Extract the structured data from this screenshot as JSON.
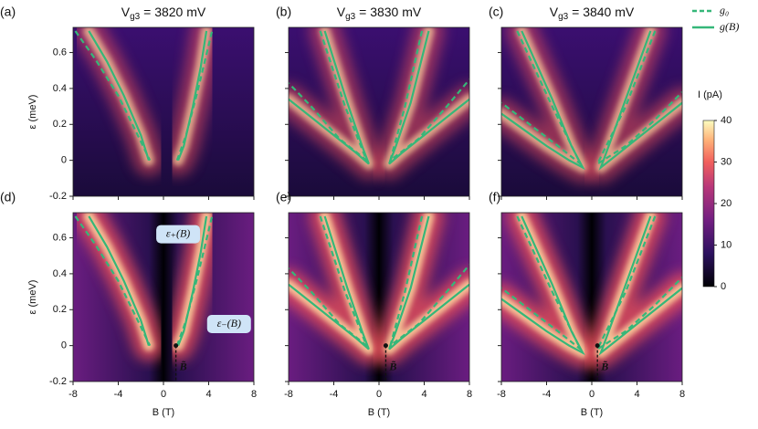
{
  "chart_data": [
    {
      "type": "heatmap",
      "panel": "(a)",
      "title": {
        "main": "V",
        "sub": "g3",
        "rest": " = 3820 mV"
      },
      "ylabel": "ε (meV)",
      "xlim": [
        -8,
        8
      ],
      "xticks": [
        -8,
        -4,
        0,
        4,
        8
      ],
      "ylim": [
        -0.2,
        0.74
      ],
      "yticks": [
        -0.2,
        0,
        0.2,
        0.4,
        0.6
      ],
      "series": [
        {
          "name": "g₀",
          "color": "#35b779",
          "dashed": true,
          "x": [
            -7.8,
            -6,
            -4,
            -2.2,
            -1.2,
            null,
            1.2,
            2,
            3,
            4.3
          ],
          "values": [
            0.72,
            0.56,
            0.36,
            0.13,
            0,
            null,
            0,
            0.14,
            0.38,
            0.72
          ]
        },
        {
          "name": "g(B)",
          "color": "#35b779",
          "dashed": false,
          "x": [
            -6.6,
            -5,
            -3.5,
            -2,
            -1.3,
            null,
            1.3,
            1.8,
            2.6,
            3.3,
            3.8
          ],
          "values": [
            0.72,
            0.55,
            0.36,
            0.14,
            0,
            null,
            0,
            0.08,
            0.3,
            0.52,
            0.72
          ]
        }
      ]
    },
    {
      "type": "heatmap",
      "panel": "(b)",
      "title": {
        "main": "V",
        "sub": "g3",
        "rest": " = 3830 mV"
      },
      "xlim": [
        -8,
        8
      ],
      "xticks": [
        -8,
        -4,
        0,
        4,
        8
      ],
      "ylim": [
        -0.2,
        0.74
      ],
      "yticks": [
        -0.2,
        0,
        0.2,
        0.4,
        0.6
      ],
      "series": [
        {
          "name": "g₀",
          "color": "#35b779",
          "dashed": true,
          "x": [
            -5.2,
            -3,
            -1.1,
            -3.5,
            -6,
            -8,
            null,
            3.8,
            2.3,
            1,
            3.5,
            6,
            8
          ],
          "values": [
            0.72,
            0.3,
            0,
            0.12,
            0.3,
            0.43,
            null,
            0.72,
            0.3,
            0,
            0.12,
            0.3,
            0.45
          ]
        },
        {
          "name": "g(B)",
          "color": "#35b779",
          "dashed": false,
          "x": [
            -4.8,
            -2.8,
            -1.5,
            -0.9,
            -2,
            -4,
            -6,
            -8,
            null,
            4.4,
            2.8,
            1.5,
            0.9,
            2,
            4,
            6,
            8
          ],
          "values": [
            0.72,
            0.32,
            0.08,
            -0.02,
            0.04,
            0.14,
            0.24,
            0.34,
            null,
            0.72,
            0.32,
            0.08,
            -0.02,
            0.04,
            0.14,
            0.24,
            0.34
          ]
        }
      ]
    },
    {
      "type": "heatmap",
      "panel": "(c)",
      "title": {
        "main": "V",
        "sub": "g3",
        "rest": " = 3840 mV"
      },
      "xlim": [
        -8,
        8
      ],
      "xticks": [
        -8,
        -4,
        0,
        4,
        8
      ],
      "ylim": [
        -0.2,
        0.74
      ],
      "yticks": [
        -0.2,
        0,
        0.2,
        0.4,
        0.6
      ],
      "series": [
        {
          "name": "g₀",
          "color": "#35b779",
          "dashed": true,
          "x": [
            -6.6,
            -3.5,
            -1,
            -3,
            -5.5,
            -8,
            null,
            5.6,
            3,
            0.5,
            3,
            5.5,
            8
          ],
          "values": [
            0.72,
            0.3,
            -0.02,
            0.08,
            0.2,
            0.32,
            null,
            0.72,
            0.3,
            -0.02,
            0.08,
            0.22,
            0.38
          ]
        },
        {
          "name": "g(B)",
          "color": "#35b779",
          "dashed": false,
          "x": [
            -6.2,
            -3.5,
            -1.8,
            -0.8,
            -2,
            -4,
            -6,
            -8,
            null,
            5.2,
            3,
            1.5,
            0.8,
            2,
            4,
            6,
            8
          ],
          "values": [
            0.72,
            0.34,
            0.08,
            -0.04,
            0,
            0.08,
            0.17,
            0.26,
            null,
            0.72,
            0.34,
            0.08,
            -0.04,
            0.02,
            0.12,
            0.22,
            0.32
          ]
        }
      ]
    },
    {
      "type": "heatmap",
      "panel": "(d)",
      "ylabel": "ε (meV)",
      "xlabel": "B (T)",
      "xlim": [
        -8,
        8
      ],
      "xticks": [
        -8,
        -4,
        0,
        4,
        8
      ],
      "ylim": [
        -0.2,
        0.74
      ],
      "yticks": [
        -0.2,
        0,
        0.2,
        0.4,
        0.6
      ],
      "annotations": [
        {
          "text": "ε₊(B)",
          "x": 1.3,
          "y": 0.62
        },
        {
          "text": "ε₋(B)",
          "x": 5.8,
          "y": 0.12
        }
      ],
      "btilde": {
        "label": "B̃",
        "x": 1.1,
        "y": 0
      },
      "series": [
        {
          "name": "g₀",
          "color": "#35b779",
          "dashed": true,
          "x": [
            -7.8,
            -6,
            -4,
            -2.2,
            -1.2,
            null,
            1.2,
            2,
            3,
            4.3
          ],
          "values": [
            0.72,
            0.56,
            0.36,
            0.13,
            0,
            null,
            0,
            0.14,
            0.38,
            0.72
          ]
        },
        {
          "name": "g(B)",
          "color": "#35b779",
          "dashed": false,
          "x": [
            -6.6,
            -5,
            -3.5,
            -2,
            -1.3,
            null,
            1.3,
            1.8,
            2.6,
            3.3,
            3.8
          ],
          "values": [
            0.72,
            0.55,
            0.36,
            0.14,
            0,
            null,
            0,
            0.08,
            0.3,
            0.52,
            0.72
          ]
        }
      ]
    },
    {
      "type": "heatmap",
      "panel": "(e)",
      "xlabel": "B (T)",
      "xlim": [
        -8,
        8
      ],
      "xticks": [
        -8,
        -4,
        0,
        4,
        8
      ],
      "ylim": [
        -0.2,
        0.74
      ],
      "yticks": [
        -0.2,
        0,
        0.2,
        0.4,
        0.6
      ],
      "btilde": {
        "label": "B̃",
        "x": 0.6,
        "y": 0
      },
      "series": [
        {
          "name": "g₀",
          "color": "#35b779",
          "dashed": true,
          "x": [
            -5.2,
            -3,
            -1.1,
            -3.5,
            -6,
            -8,
            null,
            3.8,
            2.3,
            1,
            3.5,
            6,
            8
          ],
          "values": [
            0.72,
            0.3,
            0,
            0.12,
            0.3,
            0.43,
            null,
            0.72,
            0.3,
            0,
            0.12,
            0.3,
            0.45
          ]
        },
        {
          "name": "g(B)",
          "color": "#35b779",
          "dashed": false,
          "x": [
            -4.8,
            -2.8,
            -1.5,
            -0.9,
            -2,
            -4,
            -6,
            -8,
            null,
            4.4,
            2.8,
            1.5,
            0.9,
            2,
            4,
            6,
            8
          ],
          "values": [
            0.72,
            0.32,
            0.08,
            -0.02,
            0.04,
            0.14,
            0.24,
            0.34,
            null,
            0.72,
            0.32,
            0.08,
            -0.02,
            0.04,
            0.14,
            0.24,
            0.34
          ]
        }
      ]
    },
    {
      "type": "heatmap",
      "panel": "(f)",
      "xlabel": "B (T)",
      "xlim": [
        -8,
        8
      ],
      "xticks": [
        -8,
        -4,
        0,
        4,
        8
      ],
      "ylim": [
        -0.2,
        0.74
      ],
      "yticks": [
        -0.2,
        0,
        0.2,
        0.4,
        0.6
      ],
      "btilde": {
        "label": "B̃",
        "x": 0.5,
        "y": 0
      },
      "series": [
        {
          "name": "g₀",
          "color": "#35b779",
          "dashed": true,
          "x": [
            -6.6,
            -3.5,
            -1,
            -3,
            -5.5,
            -8,
            null,
            5.6,
            3,
            0.5,
            3,
            5.5,
            8
          ],
          "values": [
            0.72,
            0.3,
            -0.02,
            0.08,
            0.2,
            0.32,
            null,
            0.72,
            0.3,
            -0.02,
            0.08,
            0.22,
            0.38
          ]
        },
        {
          "name": "g(B)",
          "color": "#35b779",
          "dashed": false,
          "x": [
            -6.2,
            -3.5,
            -1.8,
            -0.8,
            -2,
            -4,
            -6,
            -8,
            null,
            5.2,
            3,
            1.5,
            0.8,
            2,
            4,
            6,
            8
          ],
          "values": [
            0.72,
            0.34,
            0.08,
            -0.04,
            0,
            0.08,
            0.17,
            0.26,
            null,
            0.72,
            0.34,
            0.08,
            -0.04,
            0.02,
            0.12,
            0.22,
            0.32
          ]
        }
      ]
    },
    {
      "type": "colorbar",
      "label": "I (pA)",
      "ylim": [
        0,
        40
      ],
      "yticks": [
        0,
        10,
        20,
        30,
        40
      ]
    }
  ]
}
